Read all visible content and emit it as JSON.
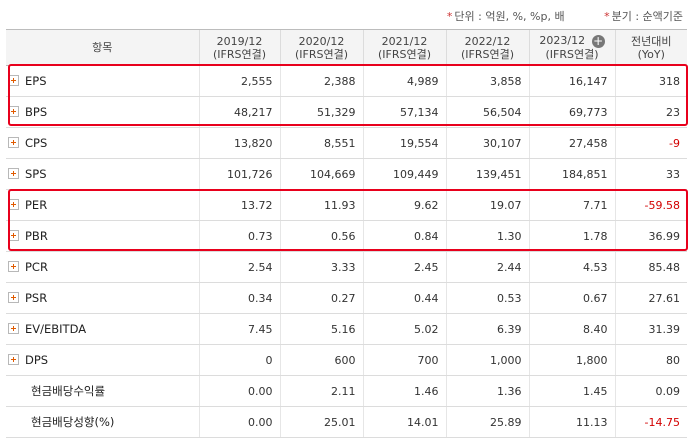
{
  "notes": {
    "unit": "단위 : 억원, %, %p, 배",
    "period": "분기 : 순액기준"
  },
  "header": {
    "item": "항목",
    "cols": [
      {
        "period": "2019/12",
        "basis": "(IFRS연결)"
      },
      {
        "period": "2020/12",
        "basis": "(IFRS연결)"
      },
      {
        "period": "2021/12",
        "basis": "(IFRS연결)"
      },
      {
        "period": "2022/12",
        "basis": "(IFRS연결)"
      },
      {
        "period": "2023/12",
        "basis": "(IFRS연결)"
      }
    ],
    "yoy_line1": "전년대비",
    "yoy_line2": "(YoY)"
  },
  "rows": [
    {
      "label": "EPS",
      "expand": true,
      "values": [
        "2,555",
        "2,388",
        "4,989",
        "3,858",
        "16,147"
      ],
      "yoy": "318",
      "neg": false
    },
    {
      "label": "BPS",
      "expand": true,
      "values": [
        "48,217",
        "51,329",
        "57,134",
        "56,504",
        "69,773"
      ],
      "yoy": "23",
      "neg": false
    },
    {
      "label": "CPS",
      "expand": true,
      "values": [
        "13,820",
        "8,551",
        "19,554",
        "30,107",
        "27,458"
      ],
      "yoy": "-9",
      "neg": true
    },
    {
      "label": "SPS",
      "expand": true,
      "values": [
        "101,726",
        "104,669",
        "109,449",
        "139,451",
        "184,851"
      ],
      "yoy": "33",
      "neg": false
    },
    {
      "label": "PER",
      "expand": true,
      "values": [
        "13.72",
        "11.93",
        "9.62",
        "19.07",
        "7.71"
      ],
      "yoy": "-59.58",
      "neg": true
    },
    {
      "label": "PBR",
      "expand": true,
      "values": [
        "0.73",
        "0.56",
        "0.84",
        "1.30",
        "1.78"
      ],
      "yoy": "36.99",
      "neg": false
    },
    {
      "label": "PCR",
      "expand": true,
      "values": [
        "2.54",
        "3.33",
        "2.45",
        "2.44",
        "4.53"
      ],
      "yoy": "85.48",
      "neg": false
    },
    {
      "label": "PSR",
      "expand": true,
      "values": [
        "0.34",
        "0.27",
        "0.44",
        "0.53",
        "0.67"
      ],
      "yoy": "27.61",
      "neg": false
    },
    {
      "label": "EV/EBITDA",
      "expand": true,
      "values": [
        "7.45",
        "5.16",
        "5.02",
        "6.39",
        "8.40"
      ],
      "yoy": "31.39",
      "neg": false
    },
    {
      "label": "DPS",
      "expand": true,
      "values": [
        "0",
        "600",
        "700",
        "1,000",
        "1,800"
      ],
      "yoy": "80",
      "neg": false
    },
    {
      "label": "현금배당수익률",
      "expand": false,
      "values": [
        "0.00",
        "2.11",
        "1.46",
        "1.36",
        "1.45"
      ],
      "yoy": "0.09",
      "neg": false
    },
    {
      "label": "현금배당성향(%)",
      "expand": false,
      "values": [
        "0.00",
        "25.01",
        "14.01",
        "25.89",
        "11.13"
      ],
      "yoy": "-14.75",
      "neg": true
    }
  ],
  "colors": {
    "highlight": "#e8001c",
    "negative": "#d20000",
    "expand_plus": "#e05a00"
  },
  "icons": {
    "expand": "plus-square-icon",
    "add_column": "plus-circle-icon"
  }
}
